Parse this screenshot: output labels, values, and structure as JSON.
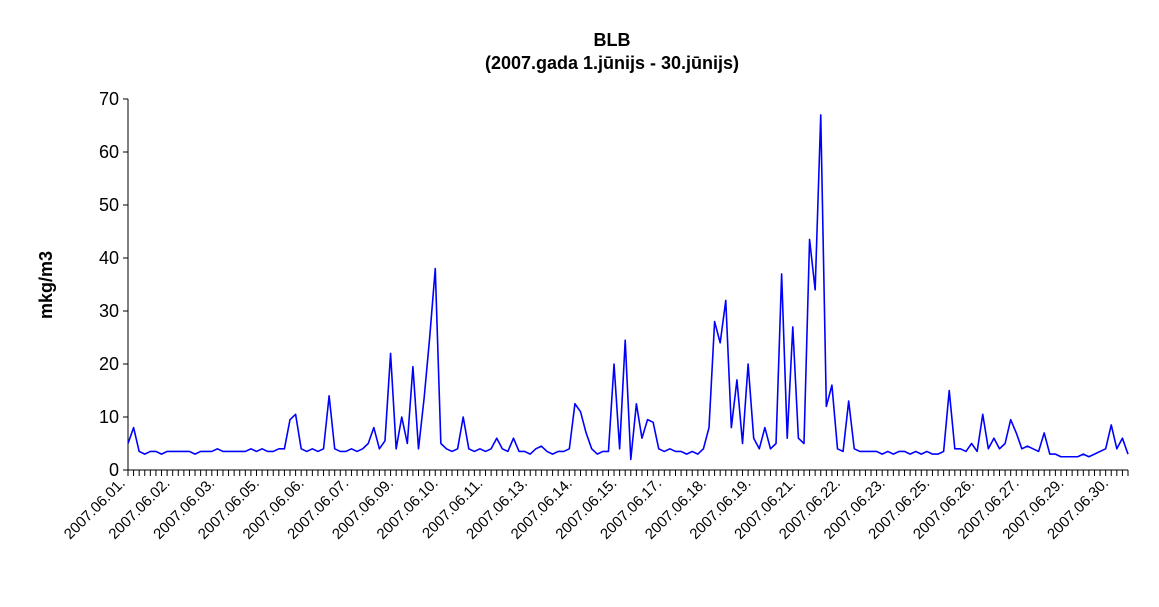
{
  "chart_data": {
    "type": "line",
    "title": "BLB",
    "subtitle": "(2007.gada 1.jūnijs - 30.jūnijs)",
    "y_label": "mkg/m3",
    "ylim": [
      0,
      70
    ],
    "yticks": [
      0,
      10,
      20,
      30,
      40,
      50,
      60,
      70
    ],
    "grid": false,
    "categories": [
      "2007.06.01.",
      null,
      null,
      null,
      null,
      null,
      null,
      null,
      "2007.06.02.",
      null,
      null,
      null,
      null,
      null,
      null,
      null,
      "2007.06.03.",
      null,
      null,
      null,
      null,
      null,
      null,
      null,
      "2007.06.05.",
      null,
      null,
      null,
      null,
      null,
      null,
      null,
      "2007.06.06.",
      null,
      null,
      null,
      null,
      null,
      null,
      null,
      "2007.06.07.",
      null,
      null,
      null,
      null,
      null,
      null,
      null,
      "2007.06.09.",
      null,
      null,
      null,
      null,
      null,
      null,
      null,
      "2007.06.10.",
      null,
      null,
      null,
      null,
      null,
      null,
      null,
      "2007.06.11.",
      null,
      null,
      null,
      null,
      null,
      null,
      null,
      "2007.06.13.",
      null,
      null,
      null,
      null,
      null,
      null,
      null,
      "2007.06.14.",
      null,
      null,
      null,
      null,
      null,
      null,
      null,
      "2007.06.15.",
      null,
      null,
      null,
      null,
      null,
      null,
      null,
      "2007.06.17.",
      null,
      null,
      null,
      null,
      null,
      null,
      null,
      "2007.06.18.",
      null,
      null,
      null,
      null,
      null,
      null,
      null,
      "2007.06.19.",
      null,
      null,
      null,
      null,
      null,
      null,
      null,
      "2007.06.21.",
      null,
      null,
      null,
      null,
      null,
      null,
      null,
      "2007.06.22.",
      null,
      null,
      null,
      null,
      null,
      null,
      null,
      "2007.06.23.",
      null,
      null,
      null,
      null,
      null,
      null,
      null,
      "2007.06.25.",
      null,
      null,
      null,
      null,
      null,
      null,
      null,
      "2007.06.26.",
      null,
      null,
      null,
      null,
      null,
      null,
      null,
      "2007.06.27.",
      null,
      null,
      null,
      null,
      null,
      null,
      null,
      "2007.06.29.",
      null,
      null,
      null,
      null,
      null,
      null,
      null,
      "2007.06.30.",
      null,
      null,
      null
    ],
    "series": [
      {
        "color": "#0000ff",
        "values": [
          5,
          8,
          3.5,
          3,
          3.5,
          3.5,
          3,
          3.5,
          3.5,
          3.5,
          3.5,
          3.5,
          3,
          3.5,
          3.5,
          3.5,
          4,
          3.5,
          3.5,
          3.5,
          3.5,
          3.5,
          4,
          3.5,
          4,
          3.5,
          3.5,
          4,
          4,
          9.5,
          10.5,
          4,
          3.5,
          4,
          3.5,
          4,
          14,
          4,
          3.5,
          3.5,
          4,
          3.5,
          4,
          5,
          8,
          4,
          5.5,
          22,
          4,
          10,
          5,
          19.5,
          4,
          13.5,
          25,
          38,
          5,
          4,
          3.5,
          4,
          10,
          4,
          3.5,
          4,
          3.5,
          4,
          6,
          4,
          3.5,
          6,
          3.5,
          3.5,
          3,
          4,
          4.5,
          3.5,
          3,
          3.5,
          3.5,
          4,
          12.5,
          11,
          7,
          4,
          3,
          3.5,
          3.5,
          20,
          4,
          24.5,
          2,
          12.5,
          6,
          9.5,
          9,
          4,
          3.5,
          4,
          3.5,
          3.5,
          3,
          3.5,
          3,
          4,
          8,
          28,
          24,
          32,
          8,
          17,
          5,
          20,
          6,
          4,
          8,
          4,
          5,
          37,
          6,
          27,
          6,
          5,
          43.5,
          34,
          67,
          12,
          16,
          4,
          3.5,
          13,
          4,
          3.5,
          3.5,
          3.5,
          3.5,
          3,
          3.5,
          3,
          3.5,
          3.5,
          3,
          3.5,
          3,
          3.5,
          3,
          3,
          3.5,
          15,
          4,
          4,
          3.5,
          5,
          3.5,
          10.5,
          4,
          6,
          4,
          5,
          9.5,
          7,
          4,
          4.5,
          4,
          3.5,
          7,
          3,
          3,
          2.5,
          2.5,
          2.5,
          2.5,
          3,
          2.5,
          3,
          3.5,
          4,
          8.5,
          4,
          6,
          3
        ]
      }
    ]
  }
}
